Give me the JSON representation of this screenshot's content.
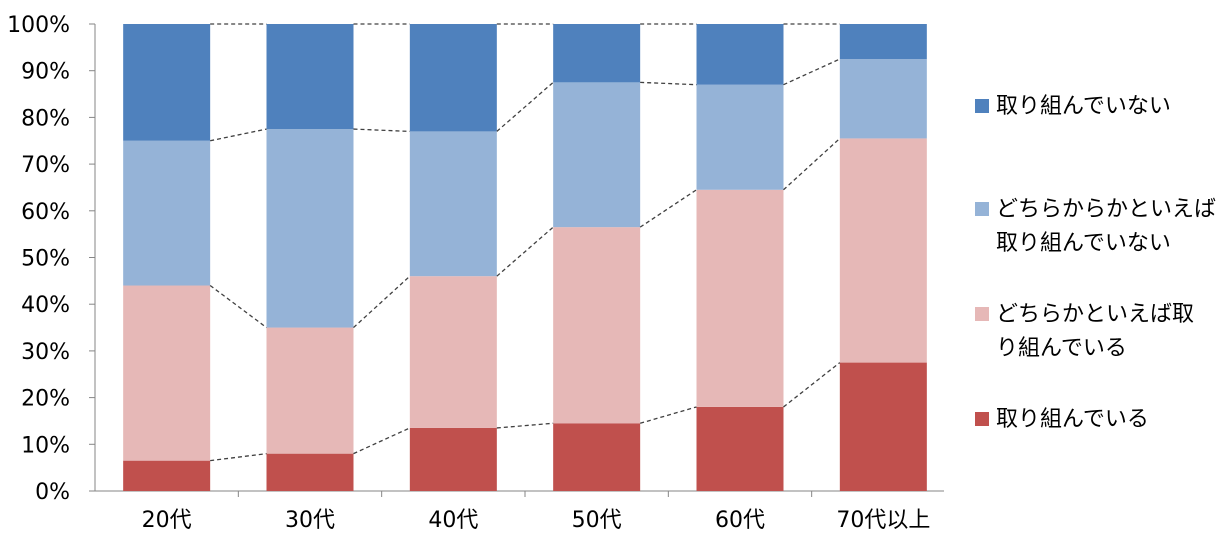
{
  "chart_data": {
    "type": "bar",
    "stacked": true,
    "percent": true,
    "categories": [
      "20代",
      "30代",
      "40代",
      "50代",
      "60代",
      "70代以上"
    ],
    "series": [
      {
        "name": "取り組んでいる",
        "color": "#c0504d",
        "values": [
          6.5,
          8,
          13.5,
          14.5,
          18,
          27.5
        ]
      },
      {
        "name": "どちらかといえば取り組んでいる",
        "color": "#e6b8b7",
        "values": [
          37.5,
          27,
          32.5,
          42,
          46.5,
          48
        ]
      },
      {
        "name": "どちらからかといえば取り組んでいない",
        "color": "#95b3d7",
        "values": [
          31,
          42.5,
          31,
          31,
          22.5,
          17
        ]
      },
      {
        "name": "取り組んでいない",
        "color": "#4f81bd",
        "values": [
          25,
          22.5,
          23,
          12.5,
          13,
          7.5
        ]
      }
    ],
    "yticks": [
      "0%",
      "10%",
      "20%",
      "30%",
      "40%",
      "50%",
      "60%",
      "70%",
      "80%",
      "90%",
      "100%"
    ],
    "ylim": [
      0,
      100
    ],
    "series_lines": "dashed",
    "legend_position": "right"
  },
  "legend": [
    {
      "color": "#4f81bd",
      "label": "取り組んでいない"
    },
    {
      "color": "#95b3d7",
      "label": "どちらからかといえば\n取り組んでいない"
    },
    {
      "color": "#e6b8b7",
      "label": "どちらかといえば取\nり組んでいる"
    },
    {
      "color": "#c0504d",
      "label": "取り組んでいる"
    }
  ]
}
